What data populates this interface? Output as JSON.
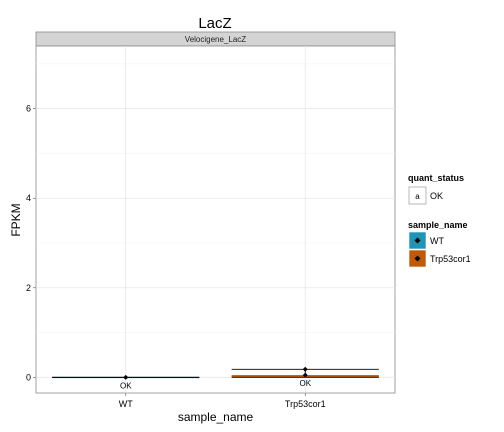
{
  "chart_data": {
    "type": "bar",
    "title": "LacZ",
    "facet": "Velocigene_LacZ",
    "xlabel": "sample_name",
    "ylabel": "FPKM",
    "ylim": [
      -0.35,
      7.4
    ],
    "yticks": [
      0,
      2,
      4,
      6
    ],
    "categories": [
      "WT",
      "Trp53cor1"
    ],
    "values": [
      0.0,
      0.05
    ],
    "error_high": [
      0.0,
      0.18
    ],
    "error_low": [
      0.0,
      0.0
    ],
    "point_labels": [
      "OK",
      "OK"
    ],
    "colors": {
      "WT": "#1f94b5",
      "Trp53cor1": "#c15a08"
    },
    "grid": true,
    "legend_position": "right",
    "legends": [
      {
        "title": "quant_status",
        "entries": [
          {
            "label": "OK",
            "symbol": "a"
          }
        ]
      },
      {
        "title": "sample_name",
        "entries": [
          {
            "label": "WT",
            "color": "#1f94b5"
          },
          {
            "label": "Trp53cor1",
            "color": "#c15a08"
          }
        ]
      }
    ]
  }
}
